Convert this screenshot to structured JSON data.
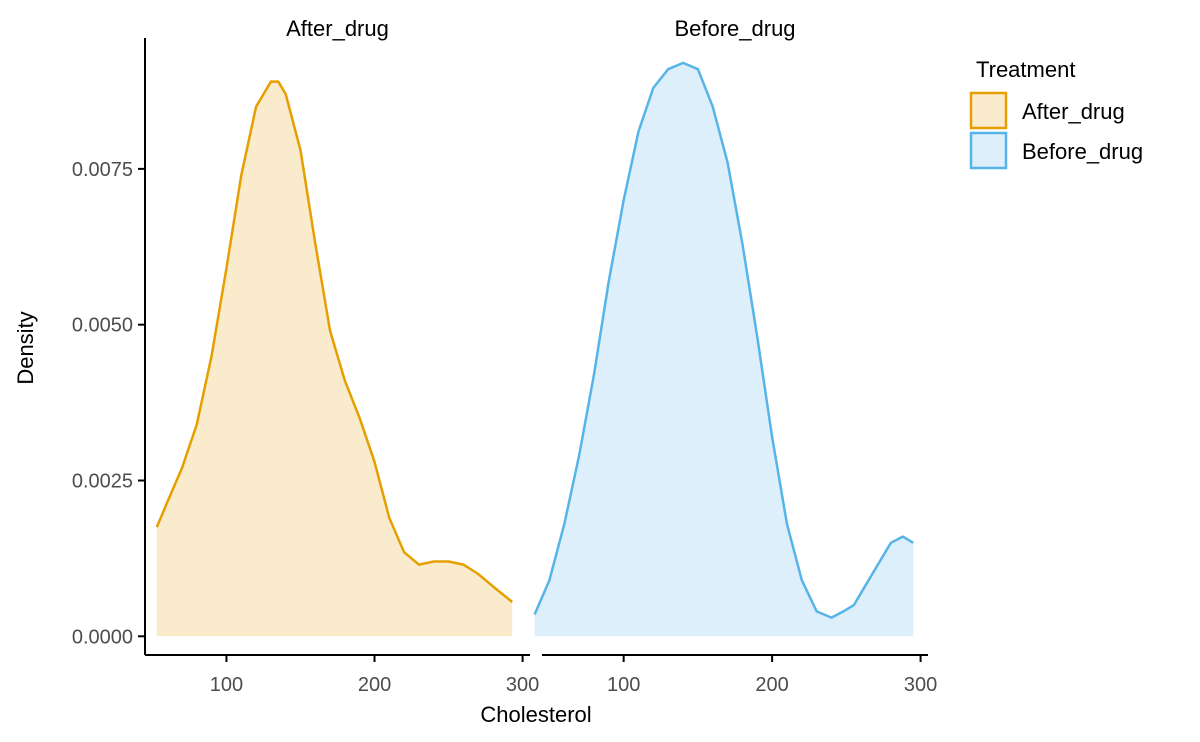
{
  "chart_data": {
    "type": "area",
    "xlabel": "Cholesterol",
    "ylabel": "Density",
    "xlim": [
      45,
      305
    ],
    "ylim": [
      -0.0003,
      0.0096
    ],
    "x_ticks": [
      100,
      200,
      300
    ],
    "y_ticks": [
      0.0,
      0.0025,
      0.005,
      0.0075
    ],
    "y_tick_labels": [
      "0.0000",
      "0.0025",
      "0.0050",
      "0.0075"
    ],
    "grid": false,
    "legend": {
      "title": "Treatment",
      "position": "right",
      "entries": [
        "After_drug",
        "Before_drug"
      ]
    },
    "facets": [
      {
        "name": "After_drug",
        "line_color": "#E69F00",
        "fill_color": "#FAEBCC",
        "x": [
          53,
          60,
          70,
          80,
          90,
          100,
          110,
          120,
          130,
          135,
          140,
          150,
          160,
          170,
          180,
          190,
          200,
          210,
          220,
          230,
          240,
          250,
          260,
          270,
          280,
          293
        ],
        "y": [
          0.00175,
          0.00215,
          0.0027,
          0.0034,
          0.0045,
          0.0059,
          0.0074,
          0.0085,
          0.0089,
          0.0089,
          0.0087,
          0.0078,
          0.0063,
          0.0049,
          0.0041,
          0.0035,
          0.0028,
          0.0019,
          0.00135,
          0.00115,
          0.0012,
          0.0012,
          0.00115,
          0.001,
          0.0008,
          0.00055
        ]
      },
      {
        "name": "Before_drug",
        "line_color": "#56B4E9",
        "fill_color": "#DDEFFA",
        "x": [
          40,
          50,
          60,
          70,
          80,
          90,
          100,
          110,
          120,
          130,
          140,
          150,
          160,
          170,
          180,
          190,
          200,
          210,
          220,
          230,
          240,
          248,
          255,
          260,
          270,
          280,
          288,
          295
        ],
        "y": [
          0.00035,
          0.0009,
          0.0018,
          0.0029,
          0.0042,
          0.0057,
          0.007,
          0.0081,
          0.0088,
          0.0091,
          0.0092,
          0.0091,
          0.0085,
          0.0076,
          0.0063,
          0.0048,
          0.0032,
          0.0018,
          0.0009,
          0.0004,
          0.0003,
          0.0004,
          0.0005,
          0.0007,
          0.0011,
          0.0015,
          0.0016,
          0.0015
        ]
      }
    ]
  }
}
